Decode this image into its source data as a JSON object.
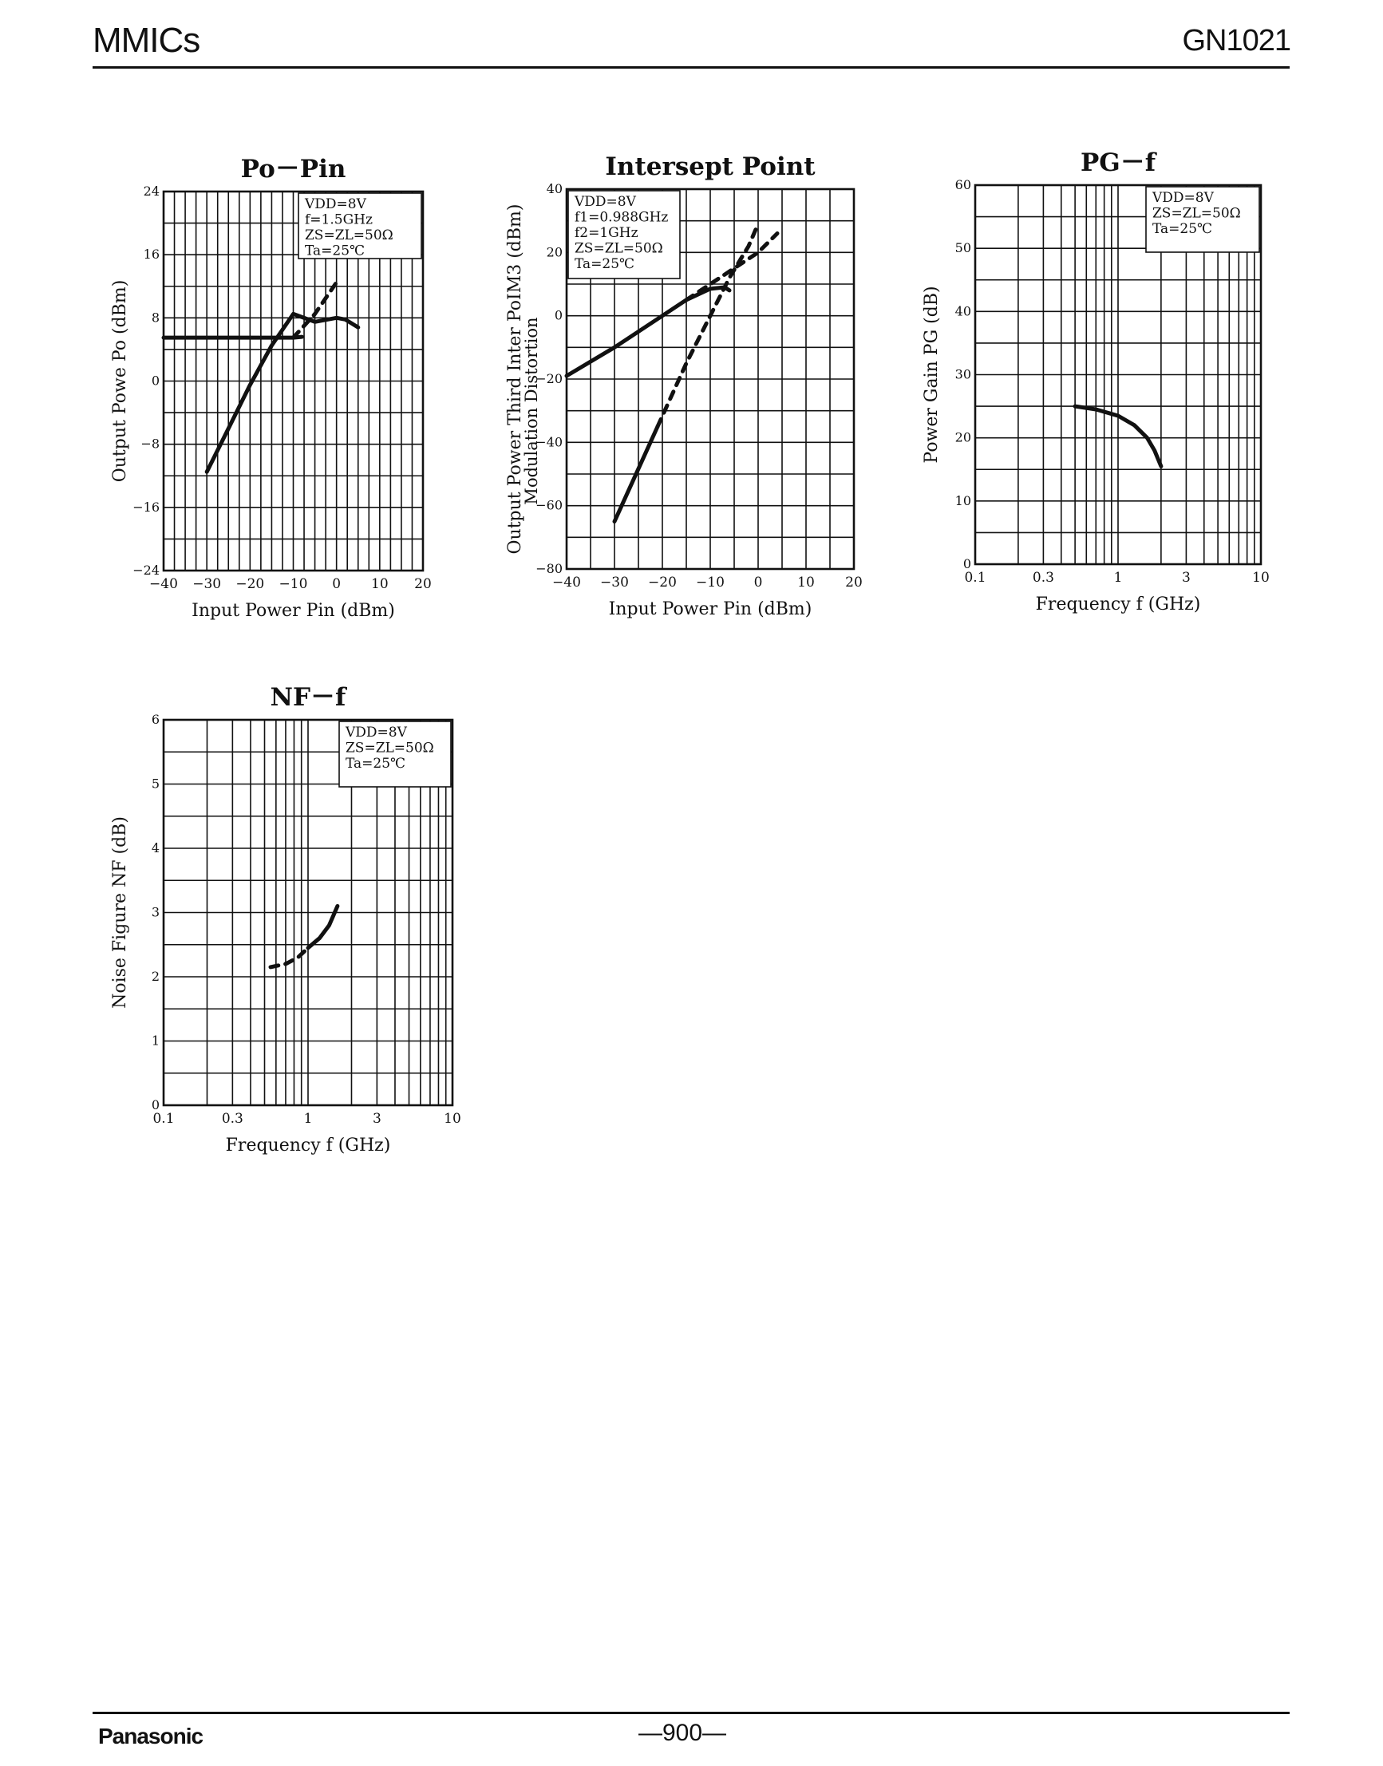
{
  "header": {
    "left": "MMICs",
    "right": "GN1021"
  },
  "footer": {
    "brand": "Panasonic",
    "page": "—900—"
  },
  "chart_data": [
    {
      "id": "po_pin",
      "type": "line",
      "title": "Po－Pin",
      "xlabel": "Input Power  Pin (dBm)",
      "ylabel": "Output Powe  Po (dBm)",
      "xlim": [
        -40,
        20
      ],
      "ylim": [
        -24,
        24
      ],
      "xscale": "linear",
      "xticks": [
        -40,
        -30,
        -20,
        -10,
        0,
        10,
        20
      ],
      "xtick_labels": [
        "−40",
        "−30",
        "−20",
        "−10",
        "0",
        "10",
        "20"
      ],
      "yticks": [
        -24,
        -16,
        -8,
        0,
        8,
        16,
        24
      ],
      "ytick_labels": [
        "−24",
        "−16",
        "−8",
        "0",
        "8",
        "16",
        "24"
      ],
      "minor_x": 2.5,
      "minor_y": 4,
      "grid": true,
      "legend": "top-right",
      "annotation": [
        "VDD=8V",
        "f=1.5GHz",
        "ZS=ZL=50Ω",
        "Ta=25℃"
      ],
      "series": [
        {
          "style": "solid",
          "x": [
            -30,
            -25,
            -20,
            -15,
            -10,
            -5,
            0,
            2,
            5
          ],
          "y": [
            -11.5,
            -6,
            -0.5,
            4.5,
            8.5,
            7.5,
            8,
            7.8,
            6.8
          ]
        },
        {
          "style": "solid",
          "x": [
            -40,
            -30,
            -20,
            -10,
            -8
          ],
          "y": [
            5.5,
            5.5,
            5.5,
            5.5,
            5.6
          ]
        },
        {
          "style": "dashed",
          "x": [
            -10,
            -5,
            0
          ],
          "y": [
            5.5,
            8.5,
            12.5
          ]
        }
      ]
    },
    {
      "id": "intercept",
      "type": "line",
      "title": "Intersept Point",
      "xlabel": "Input Power  Pin (dBm)",
      "ylabel": "Output Power Third Inter  PoIM3 (dBm)",
      "ylabel2": "Modulation Distortion",
      "xlim": [
        -40,
        20
      ],
      "ylim": [
        -80,
        40
      ],
      "xscale": "linear",
      "xticks": [
        -40,
        -30,
        -20,
        -10,
        0,
        10,
        20
      ],
      "xtick_labels": [
        "−40",
        "−30",
        "−20",
        "−10",
        "0",
        "10",
        "20"
      ],
      "yticks": [
        -80,
        -60,
        -40,
        -20,
        0,
        20,
        40
      ],
      "ytick_labels": [
        "−80",
        "−60",
        "−40",
        "−20",
        "0",
        "20",
        "40"
      ],
      "minor_x": 5,
      "minor_y": 10,
      "grid": true,
      "legend": "top-left",
      "annotation": [
        "VDD=8V",
        "f1=0.988GHz",
        "f2=1GHz",
        "ZS=ZL=50Ω",
        "Ta=25℃"
      ],
      "series": [
        {
          "style": "solid",
          "x": [
            -40,
            -30,
            -20,
            -15,
            -10,
            -7,
            -6
          ],
          "y": [
            -19,
            -10,
            0,
            5,
            8.5,
            9,
            8
          ]
        },
        {
          "style": "dashed",
          "x": [
            -15,
            -10,
            -5,
            0,
            4
          ],
          "y": [
            5,
            10,
            15,
            20,
            26
          ]
        },
        {
          "style": "solid",
          "x": [
            -30,
            -27,
            -24,
            -21
          ],
          "y": [
            -65,
            -55,
            -45,
            -35
          ]
        },
        {
          "style": "dashed",
          "x": [
            -21,
            -15,
            -10,
            -6,
            -2,
            0
          ],
          "y": [
            -35,
            -15,
            0,
            12,
            22,
            29
          ]
        }
      ]
    },
    {
      "id": "pg_f",
      "type": "line",
      "title": "PG－f",
      "xlabel": "Frequency  f (GHz)",
      "ylabel": "Power Gain  PG (dB)",
      "xlim": [
        0.1,
        10
      ],
      "ylim": [
        0,
        60
      ],
      "xscale": "log",
      "xticks": [
        0.1,
        0.3,
        1,
        3,
        10
      ],
      "xtick_labels": [
        "0.1",
        "0.3",
        "1",
        "3",
        "10"
      ],
      "yticks": [
        0,
        10,
        20,
        30,
        40,
        50,
        60
      ],
      "ytick_labels": [
        "0",
        "10",
        "20",
        "30",
        "40",
        "50",
        "60"
      ],
      "minor_y": 5,
      "grid": true,
      "legend": "top-right",
      "annotation": [
        "VDD=8V",
        "ZS=ZL=50Ω",
        "Ta=25℃"
      ],
      "series": [
        {
          "style": "solid",
          "x": [
            0.5,
            0.7,
            1.0,
            1.3,
            1.6,
            1.8,
            2.0
          ],
          "y": [
            25,
            24.5,
            23.5,
            22,
            20,
            18,
            15.5
          ]
        }
      ]
    },
    {
      "id": "nf_f",
      "type": "line",
      "title": "NF－f",
      "xlabel": "Frequency  f (GHz)",
      "ylabel": "Noise Figure  NF (dB)",
      "xlim": [
        0.1,
        10
      ],
      "ylim": [
        0,
        6
      ],
      "xscale": "log",
      "xticks": [
        0.1,
        0.3,
        1,
        3,
        10
      ],
      "xtick_labels": [
        "0.1",
        "0.3",
        "1",
        "3",
        "10"
      ],
      "yticks": [
        0,
        1,
        2,
        3,
        4,
        5,
        6
      ],
      "ytick_labels": [
        "0",
        "1",
        "2",
        "3",
        "4",
        "5",
        "6"
      ],
      "minor_y": 0.5,
      "grid": true,
      "legend": "top-right",
      "annotation": [
        "VDD=8V",
        "ZS=ZL=50Ω",
        "Ta=25℃"
      ],
      "series": [
        {
          "style": "dashed",
          "x": [
            0.55,
            0.7,
            0.85,
            1.0
          ],
          "y": [
            2.15,
            2.2,
            2.3,
            2.45
          ]
        },
        {
          "style": "solid",
          "x": [
            1.0,
            1.2,
            1.4,
            1.6
          ],
          "y": [
            2.45,
            2.6,
            2.8,
            3.1
          ]
        }
      ]
    }
  ]
}
